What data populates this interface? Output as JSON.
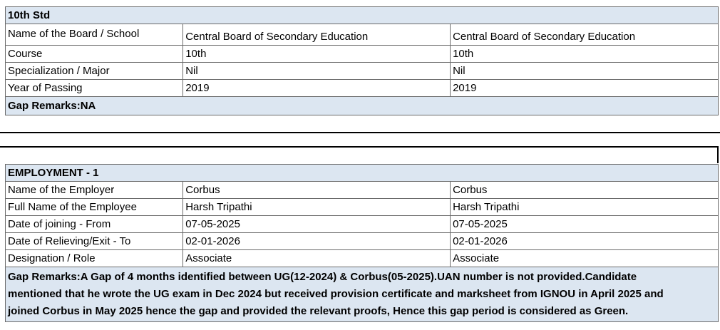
{
  "education": {
    "title": "10th Std",
    "rows": [
      {
        "label": "Name of the Board / School",
        "v1": "Central Board of Secondary Education",
        "v2": "Central Board of Secondary Education"
      },
      {
        "label": "Course",
        "v1": "10th",
        "v2": "10th"
      },
      {
        "label": "Specialization / Major",
        "v1": "Nil",
        "v2": "Nil"
      },
      {
        "label": "Year of Passing",
        "v1": "2019",
        "v2": "2019"
      }
    ],
    "gap_remarks": "Gap Remarks:NA"
  },
  "employment": {
    "title": "EMPLOYMENT - 1",
    "rows": [
      {
        "label": "Name of the Employer",
        "v1": "Corbus",
        "v2": "Corbus"
      },
      {
        "label": "Full Name of the Employee",
        "v1": "Harsh Tripathi",
        "v2": "Harsh Tripathi"
      },
      {
        "label": "Date of joining - From",
        "v1": "07-05-2025",
        "v2": "07-05-2025"
      },
      {
        "label": "Date of Relieving/Exit - To",
        "v1": "02-01-2026",
        "v2": "02-01-2026"
      },
      {
        "label": "Designation / Role",
        "v1": "Associate",
        "v2": "Associate"
      }
    ],
    "gap_remarks_lines": [
      "Gap Remarks:A Gap of 4 months identified between UG(12-2024) & Corbus(05-2025).UAN number is not provided.Candidate",
      "mentioned that he wrote the UG exam in Dec 2024 but received provision certificate and marksheet from IGNOU in April 2025 and",
      "joined Corbus in May 2025 hence the gap and provided the relevant proofs, Hence this gap period is considered as Green."
    ]
  }
}
